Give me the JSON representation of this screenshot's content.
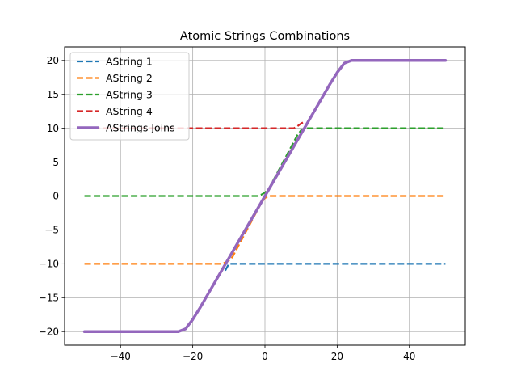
{
  "chart_data": {
    "type": "line",
    "title": "Atomic Strings Combinations",
    "xlabel": "",
    "ylabel": "",
    "xlim": [
      -55.5,
      55.5
    ],
    "ylim": [
      -22,
      22
    ],
    "xticks": [
      -40,
      -20,
      0,
      20,
      40
    ],
    "xtick_labels": [
      "−40",
      "−20",
      "0",
      "20",
      "40"
    ],
    "yticks": [
      -20,
      -15,
      -10,
      -5,
      0,
      5,
      10,
      15,
      20
    ],
    "ytick_labels": [
      "−20",
      "−15",
      "−10",
      "−5",
      "0",
      "5",
      "10",
      "15",
      "20"
    ],
    "grid": true,
    "legend_position": "top-left",
    "series": [
      {
        "name": "AString 1",
        "color": "#1f77b4",
        "style": "dashed",
        "x": [
          -11,
          -10.5,
          -10,
          50
        ],
        "y": [
          -11,
          -10.5,
          -10,
          -10
        ]
      },
      {
        "name": "AString 2",
        "color": "#ff7f0e",
        "style": "dashed",
        "x": [
          -50,
          -12,
          -11,
          -10,
          -9,
          -1,
          0,
          1,
          50
        ],
        "y": [
          -10,
          -10,
          -9.8,
          -9.5,
          -9,
          -1,
          -0.3,
          0,
          0
        ]
      },
      {
        "name": "AString 3",
        "color": "#2ca02c",
        "style": "dashed",
        "x": [
          -50,
          -2,
          -1,
          0,
          1,
          9,
          10,
          11,
          50
        ],
        "y": [
          0,
          0,
          0.2,
          0.5,
          1,
          9,
          9.7,
          10,
          10
        ]
      },
      {
        "name": "AString 4",
        "color": "#d62728",
        "style": "dashed",
        "x": [
          -50,
          8,
          9,
          10,
          11
        ],
        "y": [
          10,
          10,
          10.3,
          10.7,
          11
        ]
      },
      {
        "name": "AStrings Joins",
        "color": "#9467bd",
        "style": "solid",
        "x": [
          -50,
          -24,
          -22,
          -20,
          -18,
          0,
          18,
          20,
          22,
          24,
          50
        ],
        "y": [
          -20,
          -20,
          -19.6,
          -18.2,
          -16.5,
          0,
          16.5,
          18.2,
          19.6,
          20,
          20
        ]
      }
    ]
  }
}
